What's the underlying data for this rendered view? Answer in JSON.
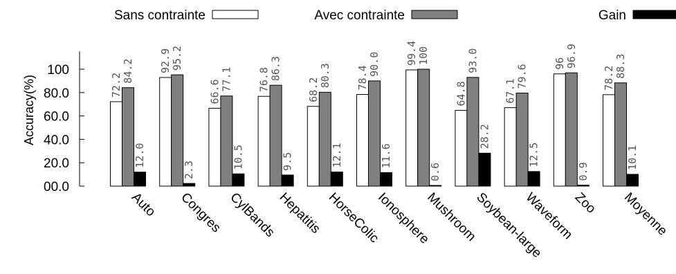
{
  "chart_data": {
    "type": "bar",
    "title": "",
    "xlabel": "",
    "ylabel": "Accuracy(%)",
    "ylim": [
      0,
      120
    ],
    "yticks": [
      0,
      20,
      40,
      60,
      80,
      100
    ],
    "ytick_labels": [
      "00.0",
      "20.0",
      "40.0",
      "60.0",
      "80.0",
      "100"
    ],
    "grid": false,
    "legend_position": "top",
    "categories": [
      "Auto",
      "Congres",
      "CylBands",
      "Hepatitis",
      "HorseColic",
      "Ionosphere",
      "Mushroom",
      "Soybean-large",
      "Waveform",
      "Zoo",
      "Moyenne"
    ],
    "series": [
      {
        "name": "Sans contrainte",
        "color": "#ffffff",
        "values": [
          72.2,
          92.9,
          66.6,
          76.8,
          68.2,
          78.4,
          99.4,
          64.8,
          67.1,
          96,
          78.2
        ],
        "labels": [
          "72.2",
          "92.9",
          "66.6",
          "76.8",
          "68.2",
          "78.4",
          "99.4",
          "64.8",
          "67.1",
          "96",
          "78.2"
        ]
      },
      {
        "name": "Avec contrainte",
        "color": "#808080",
        "values": [
          84.2,
          95.2,
          77.1,
          86.3,
          80.3,
          90.0,
          100,
          93.0,
          79.6,
          96.9,
          88.3
        ],
        "labels": [
          "84.2",
          "95.2",
          "77.1",
          "86.3",
          "80.3",
          "90.0",
          "100",
          "93.0",
          "79.6",
          "96.9",
          "88.3"
        ]
      },
      {
        "name": "Gain",
        "color": "#000000",
        "values": [
          12.0,
          2.3,
          10.5,
          9.5,
          12.1,
          11.6,
          0.6,
          28.2,
          12.5,
          0.9,
          10.1
        ],
        "labels": [
          "12.0",
          "2.3",
          "10.5",
          "9.5",
          "12.1",
          "11.6",
          "0.6",
          "28.2",
          "12.5",
          "0.9",
          "10.1"
        ]
      }
    ]
  }
}
